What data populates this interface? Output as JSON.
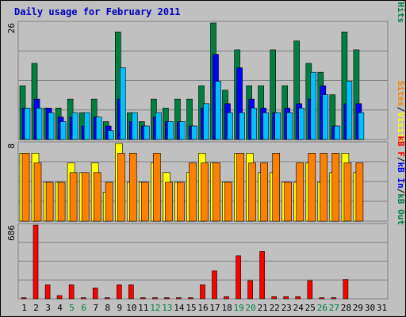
{
  "chart_data": {
    "type": "bar",
    "title": "Daily usage for February 2011",
    "categories": [
      "1",
      "2",
      "3",
      "4",
      "5",
      "6",
      "7",
      "8",
      "9",
      "10",
      "11",
      "12",
      "13",
      "14",
      "15",
      "16",
      "17",
      "18",
      "19",
      "20",
      "21",
      "22",
      "23",
      "24",
      "25",
      "26",
      "27",
      "28",
      "29",
      "30",
      "31"
    ],
    "weekend_days": [
      "5",
      "6",
      "12",
      "13",
      "19",
      "20",
      "26",
      "27"
    ],
    "panels": [
      {
        "name": "hits-files-pages",
        "ymax_label": "26",
        "ylim": [
          0,
          26
        ],
        "labels": [
          {
            "text": "Pages",
            "color": "#00c0ff"
          },
          {
            "text": "/",
            "color": "#000000"
          },
          {
            "text": "Files",
            "color": "#0000ff"
          },
          {
            "text": "/",
            "color": "#000000"
          },
          {
            "text": "Hits",
            "color": "#008040"
          }
        ],
        "series": [
          {
            "name": "Hits",
            "color": "#008040",
            "values": [
              12,
              17,
              7,
              7,
              9,
              6,
              9,
              4,
              24,
              6,
              4,
              9,
              7,
              9,
              9,
              12,
              26,
              11,
              20,
              12,
              12,
              20,
              12,
              22,
              17,
              15,
              10,
              24,
              20,
              0,
              0
            ]
          },
          {
            "name": "Files",
            "color": "#0000ff",
            "values": [
              7,
              9,
              7,
              5,
              5,
              3,
              5,
              3,
              9,
              4,
              3,
              5,
              4,
              4,
              3,
              7,
              19,
              8,
              16,
              9,
              7,
              6,
              7,
              8,
              9,
              12,
              3,
              8,
              8,
              0,
              0
            ]
          },
          {
            "name": "Pages",
            "color": "#00c0ff",
            "values": [
              7,
              7,
              6,
              4,
              6,
              6,
              5,
              2,
              16,
              6,
              3,
              6,
              4,
              4,
              3,
              8,
              13,
              6,
              6,
              7,
              6,
              6,
              6,
              7,
              15,
              10,
              3,
              13,
              6,
              0,
              0
            ]
          }
        ]
      },
      {
        "name": "visits-sites",
        "ymax_label": "8",
        "ylim": [
          0,
          8
        ],
        "labels": [
          {
            "text": "Sites",
            "color": "#ff8000"
          },
          {
            "text": "/",
            "color": "#000000"
          },
          {
            "text": "Visits",
            "color": "#ffff00"
          }
        ],
        "series": [
          {
            "name": "Visits",
            "color": "#ffff00",
            "values": [
              7,
              7,
              4,
              4,
              6,
              5,
              6,
              3,
              8,
              4,
              4,
              6,
              5,
              4,
              5,
              7,
              6,
              4,
              7,
              7,
              5,
              5,
              4,
              4,
              6,
              4,
              5,
              7,
              5,
              0,
              0
            ]
          },
          {
            "name": "Sites",
            "color": "#ff8000",
            "values": [
              7,
              6,
              4,
              4,
              5,
              5,
              5,
              4,
              7,
              7,
              4,
              7,
              4,
              4,
              6,
              6,
              6,
              4,
              7,
              6,
              6,
              7,
              4,
              6,
              7,
              7,
              7,
              6,
              6,
              0,
              0
            ]
          }
        ]
      },
      {
        "name": "kbytes",
        "ymax_label": "686",
        "ylim": [
          0,
          686
        ],
        "labels": [
          {
            "text": "kB F",
            "color": "#ff0000"
          },
          {
            "text": "/",
            "color": "#000000"
          },
          {
            "text": "kB In",
            "color": "#0000ff"
          },
          {
            "text": "/",
            "color": "#000000"
          },
          {
            "text": "kB Out",
            "color": "#008040"
          }
        ],
        "series": [
          {
            "name": "kB F",
            "color": "#ff0000",
            "values": [
              10,
              686,
              130,
              30,
              130,
              10,
              100,
              10,
              130,
              130,
              10,
              10,
              10,
              10,
              10,
              130,
              260,
              20,
              400,
              170,
              440,
              20,
              20,
              20,
              170,
              10,
              10,
              180,
              0,
              0,
              0
            ]
          }
        ]
      }
    ]
  }
}
